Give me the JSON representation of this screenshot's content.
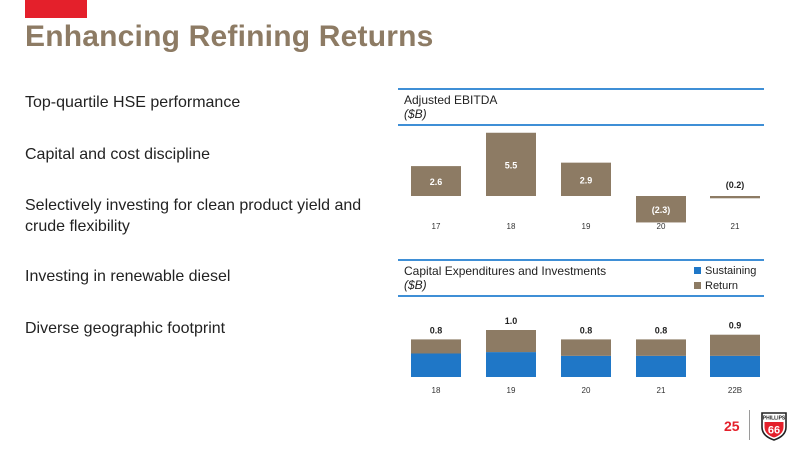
{
  "title": "Enhancing Refining Returns",
  "bullets": [
    "Top-quartile HSE performance",
    "Capital and cost discipline",
    "Selectively investing for clean product yield and crude flexibility",
    "Investing in renewable diesel",
    "Diverse geographic footprint"
  ],
  "page_number": "25",
  "logo": {
    "text": "PHILLIPS",
    "number": "66"
  },
  "colors": {
    "accent": "#e4202b",
    "title": "#8d7b64",
    "bar": "#8d7b64",
    "sustaining": "#1f77c7",
    "rule": "#3f8fd6"
  },
  "chart_data": [
    {
      "type": "bar",
      "title": "Adjusted EBITDA",
      "ylabel": "($B)",
      "categories": [
        "17",
        "18",
        "19",
        "20",
        "21"
      ],
      "values": [
        2.6,
        5.5,
        2.9,
        -2.3,
        -0.2
      ],
      "labels": [
        "2.6",
        "5.5",
        "2.9",
        "(2.3)",
        "(0.2)"
      ],
      "ylim": [
        -2.5,
        5.6
      ]
    },
    {
      "type": "bar",
      "stacked": true,
      "title": "Capital Expenditures and Investments",
      "ylabel": "($B)",
      "categories": [
        "18",
        "19",
        "20",
        "21",
        "22B"
      ],
      "series": [
        {
          "name": "Sustaining",
          "color": "#1f77c7",
          "values": [
            0.5,
            0.53,
            0.45,
            0.45,
            0.45
          ]
        },
        {
          "name": "Return",
          "color": "#8d7b64",
          "values": [
            0.3,
            0.47,
            0.35,
            0.35,
            0.45
          ]
        }
      ],
      "totals": [
        "0.8",
        "1.0",
        "0.8",
        "0.8",
        "0.9"
      ],
      "legend": "top-right",
      "ylim": [
        0,
        1.0
      ]
    }
  ]
}
